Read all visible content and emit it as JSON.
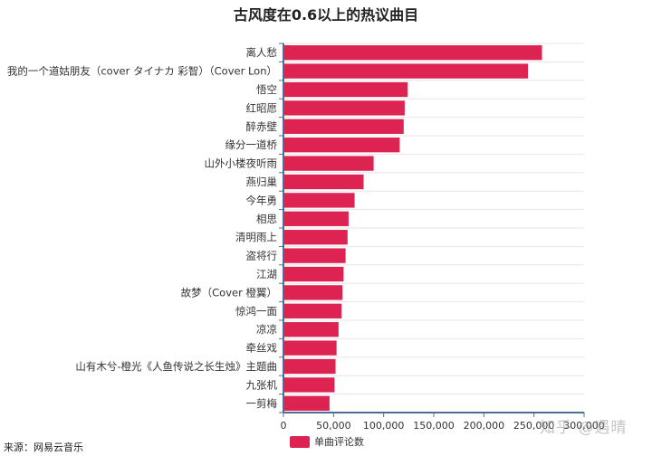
{
  "chart_data": {
    "type": "bar",
    "orientation": "horizontal",
    "title": "古风度在0.6以上的热议曲目",
    "categories": [
      "离人愁",
      "我的一个道姑朋友（cover タイナカ 彩智）（Cover Lon）",
      "悟空",
      "红昭愿",
      "醉赤壁",
      "缘分一道桥",
      "山外小楼夜听雨",
      "燕归巢",
      "今年勇",
      "相思",
      "清明雨上",
      "盗将行",
      "江湖",
      "故梦（Cover 橙翼）",
      "惊鸿一面",
      "凉凉",
      "牵丝戏",
      "山有木兮-橙光《人鱼传说之长生烛》主题曲",
      "九张机",
      "一剪梅"
    ],
    "series": [
      {
        "name": "单曲评论数",
        "color": "#dc2352",
        "values": [
          258000,
          244000,
          124000,
          121000,
          120000,
          116000,
          90000,
          80000,
          71000,
          65000,
          64000,
          62000,
          60000,
          59000,
          58000,
          55000,
          53000,
          52000,
          51000,
          46000
        ]
      }
    ],
    "xlim": [
      0,
      300000
    ],
    "xticks": [
      "0",
      "50,000",
      "100,000",
      "150,000",
      "200,000",
      "250,000",
      "300,000"
    ],
    "xlabel": "",
    "ylabel": "",
    "grid": true,
    "legend": "bottom-center"
  },
  "footer": {
    "source": "来源：网易云音乐",
    "watermark": "知乎 @遇晴"
  }
}
